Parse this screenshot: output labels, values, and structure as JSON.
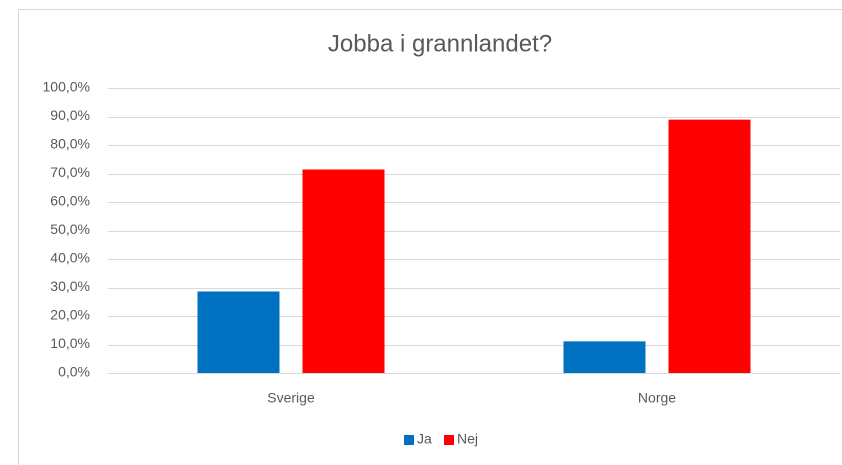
{
  "chart_data": {
    "type": "bar",
    "title": "Jobba i grannlandet?",
    "categories": [
      "Sverige",
      "Norge"
    ],
    "series": [
      {
        "name": "Ja",
        "color": "#0070c0",
        "values": [
          28.6,
          11.1
        ]
      },
      {
        "name": "Nej",
        "color": "#ff0000",
        "values": [
          71.4,
          88.9
        ]
      }
    ],
    "ylim": [
      0,
      100
    ],
    "yticks": [
      {
        "value": 0,
        "label": "0,0%"
      },
      {
        "value": 10,
        "label": "10,0%"
      },
      {
        "value": 20,
        "label": "20,0%"
      },
      {
        "value": 30,
        "label": "30,0%"
      },
      {
        "value": 40,
        "label": "40,0%"
      },
      {
        "value": 50,
        "label": "50,0%"
      },
      {
        "value": 60,
        "label": "60,0%"
      },
      {
        "value": 70,
        "label": "70,0%"
      },
      {
        "value": 80,
        "label": "80,0%"
      },
      {
        "value": 90,
        "label": "90,0%"
      },
      {
        "value": 100,
        "label": "100,0%"
      }
    ],
    "grid": true,
    "legend": "bottom"
  }
}
